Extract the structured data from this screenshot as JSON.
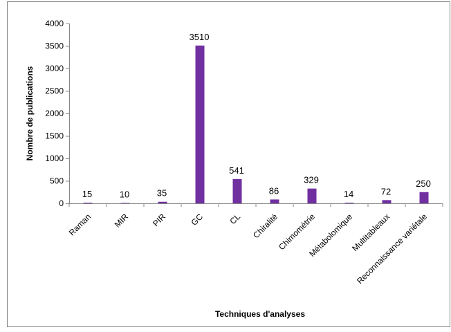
{
  "chart_data": {
    "type": "bar",
    "title": "",
    "xlabel": "Techniques d'analyses",
    "ylabel": "Nombre de publications",
    "categories": [
      "Raman",
      "MIR",
      "PIR",
      "GC",
      "CL",
      "Chiralité",
      "Chimométrie",
      "Métabolomique",
      "Multitableaux",
      "Reconnaissance variétale"
    ],
    "values": [
      15,
      10,
      35,
      3510,
      541,
      86,
      329,
      14,
      72,
      250
    ],
    "data_labels": [
      "15",
      "10",
      "35",
      "3510",
      "541",
      "86",
      "329",
      "14",
      "72",
      "250"
    ],
    "ylim": [
      0,
      4000
    ],
    "yticks": [
      0,
      500,
      1000,
      1500,
      2000,
      2500,
      3000,
      3500,
      4000
    ],
    "ytick_labels": [
      "0",
      "500",
      "1000",
      "1500",
      "2000",
      "2500",
      "3000",
      "3500",
      "4000"
    ],
    "grid": false,
    "legend": "none",
    "bar_color": "#7030a0",
    "frame_color": "#7f7f7f"
  }
}
